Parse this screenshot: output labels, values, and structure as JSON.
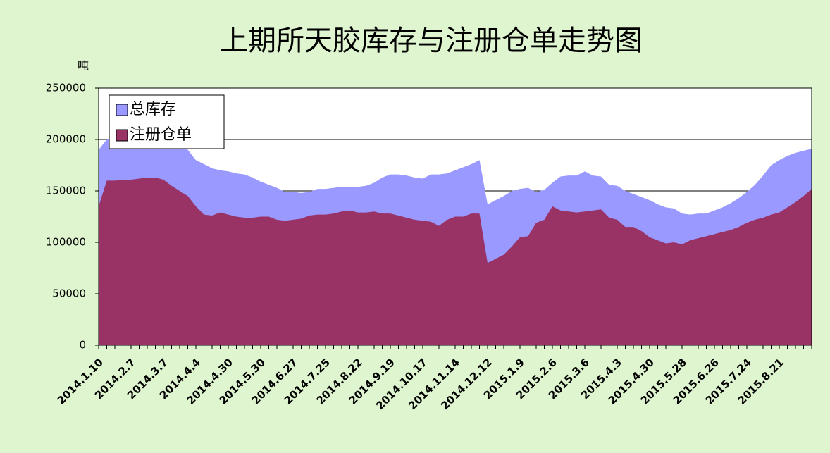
{
  "chart_data": {
    "type": "area",
    "title": "上期所天胶库存与注册仓单走势图",
    "y_axis_label": "吨",
    "categories": [
      "2014.1.10",
      null,
      null,
      null,
      "2014.2.7",
      null,
      null,
      null,
      "2014.3.7",
      null,
      null,
      null,
      "2014.4.4",
      null,
      null,
      null,
      "2014.4.30",
      null,
      null,
      null,
      "2014.5.30",
      null,
      null,
      null,
      "2014.6.27",
      null,
      null,
      null,
      "2014.7.25",
      null,
      null,
      null,
      "2014.8.22",
      null,
      null,
      null,
      "2014.9.19",
      null,
      null,
      null,
      "2014.10.17",
      null,
      null,
      null,
      "2014.11.14",
      null,
      null,
      null,
      "2014.12.12",
      null,
      null,
      null,
      "2015.1.9",
      null,
      null,
      null,
      "2015.2.6",
      null,
      null,
      null,
      "2015.3.6",
      null,
      null,
      null,
      "2015.4.3",
      null,
      null,
      null,
      "2015.4.30",
      null,
      null,
      null,
      "2015.5.28",
      null,
      null,
      null,
      "2015.6.26",
      null,
      null,
      null,
      "2015.7.24",
      null,
      null,
      null,
      "2015.8.21",
      null,
      null,
      null,
      null
    ],
    "series": [
      {
        "name": "总库存",
        "color": "#9999ff",
        "values": [
          190000,
          200000,
          201000,
          201000,
          201000,
          201000,
          201000,
          201000,
          201000,
          200000,
          198000,
          190000,
          180000,
          176000,
          172000,
          170000,
          169000,
          167000,
          166000,
          163000,
          159000,
          156000,
          153000,
          149000,
          149000,
          148000,
          149000,
          152000,
          152000,
          153000,
          154000,
          154000,
          154000,
          155000,
          158000,
          163000,
          166000,
          166000,
          165000,
          163000,
          162000,
          166000,
          166000,
          167000,
          170000,
          173000,
          176000,
          180000,
          137000,
          141000,
          145000,
          150000,
          152000,
          153000,
          149000,
          151000,
          158000,
          164000,
          165000,
          165000,
          169000,
          165000,
          164000,
          156000,
          155000,
          150000,
          147000,
          144000,
          141000,
          137000,
          134000,
          133000,
          128000,
          127000,
          128000,
          128000,
          131000,
          134000,
          138000,
          143000,
          149000,
          156000,
          165000,
          175000,
          180000,
          184000,
          187000,
          189000,
          191000
        ]
      },
      {
        "name": "注册仓单",
        "color": "#993366",
        "values": [
          135000,
          160000,
          160000,
          161000,
          161000,
          162000,
          163000,
          163000,
          161000,
          155000,
          150000,
          145000,
          135000,
          127000,
          126000,
          129000,
          127000,
          125000,
          124000,
          124000,
          125000,
          125000,
          122000,
          121000,
          122000,
          123000,
          126000,
          127000,
          127000,
          128000,
          130000,
          131000,
          129000,
          129000,
          130000,
          128000,
          128000,
          126000,
          124000,
          122000,
          121000,
          120000,
          116000,
          122000,
          125000,
          125000,
          128000,
          128000,
          80000,
          84000,
          88000,
          96000,
          105000,
          106000,
          119000,
          122000,
          135000,
          131000,
          130000,
          129000,
          130000,
          131000,
          132000,
          124000,
          122000,
          115000,
          115000,
          111000,
          105000,
          102000,
          99000,
          100000,
          98000,
          102000,
          104000,
          106000,
          108000,
          110000,
          112000,
          115000,
          119000,
          122000,
          124000,
          127000,
          129000,
          134000,
          139000,
          145000,
          152000
        ]
      }
    ],
    "ylim": [
      0,
      250000
    ],
    "yticks": [
      0,
      50000,
      100000,
      150000,
      200000,
      250000
    ],
    "grid": true,
    "legend": "upper left"
  }
}
